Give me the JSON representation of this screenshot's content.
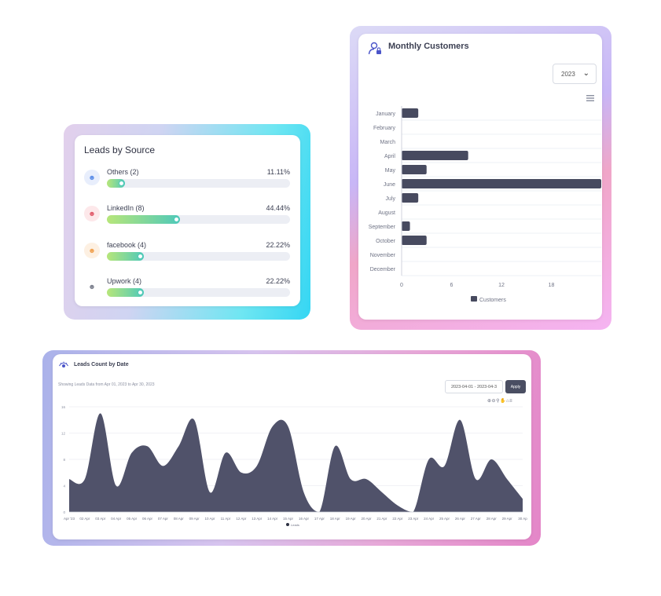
{
  "leads_by_source": {
    "title": "Leads by Source",
    "sources": [
      {
        "name": "Others (2)",
        "percent_label": "11.11%",
        "fraction": 0.1111,
        "icon": "user-icon",
        "icon_color": "#5b8de8",
        "icon_bg": "#e8eefc"
      },
      {
        "name": "LinkedIn (8)",
        "percent_label": "44.44%",
        "fraction": 0.4444,
        "icon": "user-icon",
        "icon_color": "#e05a6a",
        "icon_bg": "#fde8ea"
      },
      {
        "name": "facebook (4)",
        "percent_label": "22.22%",
        "fraction": 0.2222,
        "icon": "user-icon",
        "icon_color": "#f0a04e",
        "icon_bg": "#fdf0e2"
      },
      {
        "name": "Upwork (4)",
        "percent_label": "22.22%",
        "fraction": 0.2222,
        "icon": "user-icon",
        "icon_color": "#7a7e8c",
        "icon_bg": "#ffffff"
      }
    ]
  },
  "monthly_customers": {
    "title": "Monthly Customers",
    "year_select": "2023",
    "menu_icon": "hamburger-menu-icon"
  },
  "leads_count_by_date": {
    "title": "Leads Count by Date",
    "subtitle": "Showing Leads Data from Apr 01, 2023 to Apr 30, 2023",
    "date_range": "2023-04-01 - 2023-04-3",
    "apply_label": "Apply",
    "toolbar_icons": [
      "zoom-in-icon",
      "zoom-out-icon",
      "zoom-selection-icon",
      "pan-hand-icon",
      "home-reset-icon",
      "menu-icon"
    ]
  },
  "chart_data": [
    {
      "type": "bar",
      "orientation": "horizontal",
      "title": "",
      "categories": [
        "January",
        "February",
        "March",
        "April",
        "May",
        "June",
        "July",
        "August",
        "September",
        "October",
        "November",
        "December"
      ],
      "series": [
        {
          "name": "Customers",
          "values": [
            2,
            0,
            0,
            8,
            3,
            24,
            2,
            0,
            1,
            3,
            0,
            0
          ]
        }
      ],
      "xlim": [
        0,
        24
      ],
      "xticks": [
        "0",
        "6",
        "12",
        "18"
      ],
      "legend": "bottom",
      "bar_color": "#474a5f"
    },
    {
      "type": "area",
      "title": "",
      "x": [
        "Apr '23",
        "02 Apr",
        "03 Apr",
        "04 Apr",
        "05 Apr",
        "06 Apr",
        "07 Apr",
        "08 Apr",
        "09 Apr",
        "10 Apr",
        "11 Apr",
        "12 Apr",
        "13 Apr",
        "14 Apr",
        "15 Apr",
        "16 Apr",
        "17 Apr",
        "18 Apr",
        "19 Apr",
        "20 Apr",
        "21 Apr",
        "22 Apr",
        "23 Apr",
        "24 Apr",
        "25 Apr",
        "26 Apr",
        "27 Apr",
        "28 Apr",
        "29 Apr",
        "30 Ap"
      ],
      "series": [
        {
          "name": "Leads",
          "values": [
            5,
            5,
            15,
            4,
            9,
            10,
            7,
            10,
            14,
            3,
            9,
            6,
            7,
            13,
            13,
            3,
            0,
            10,
            5,
            5,
            3,
            1,
            0,
            8,
            7,
            14,
            5,
            8,
            5,
            2
          ]
        }
      ],
      "ylim": [
        0,
        16
      ],
      "yticks": [
        "0",
        "4",
        "8",
        "12",
        "16"
      ],
      "legend": "bottom",
      "fill_color": "#50526a"
    }
  ]
}
